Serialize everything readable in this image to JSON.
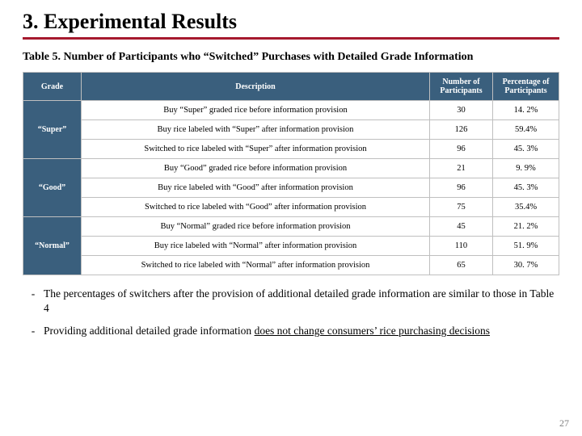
{
  "title": "3. Experimental Results",
  "caption": "Table 5. Number of Participants who “Switched” Purchases with Detailed Grade Information",
  "headers": {
    "grade": "Grade",
    "desc": "Description",
    "num": "Number of Participants",
    "pct": "Percentage of Participants"
  },
  "groups": [
    {
      "label": "“Super”",
      "rows": [
        {
          "desc": "Buy “Super” graded rice before information provision",
          "num": "30",
          "pct": "14. 2%"
        },
        {
          "desc": "Buy rice labeled with “Super” after information provision",
          "num": "126",
          "pct": "59.4%"
        },
        {
          "desc": "Switched to rice labeled with “Super” after information provision",
          "num": "96",
          "pct": "45. 3%"
        }
      ]
    },
    {
      "label": "“Good”",
      "rows": [
        {
          "desc": "Buy “Good” graded rice before information provision",
          "num": "21",
          "pct": "9. 9%"
        },
        {
          "desc": "Buy rice labeled with “Good” after information provision",
          "num": "96",
          "pct": "45. 3%"
        },
        {
          "desc": "Switched to rice labeled with “Good” after information provision",
          "num": "75",
          "pct": "35.4%"
        }
      ]
    },
    {
      "label": "“Normal”",
      "rows": [
        {
          "desc": "Buy “Normal” graded rice before information provision",
          "num": "45",
          "pct": "21. 2%"
        },
        {
          "desc": "Buy rice labeled with “Normal” after information provision",
          "num": "110",
          "pct": "51. 9%"
        },
        {
          "desc": "Switched to rice labeled with “Normal” after information provision",
          "num": "65",
          "pct": "30. 7%"
        }
      ]
    }
  ],
  "bullet1": "The percentages of switchers after the provision of additional detailed grade information are similar to those in Table 4",
  "bullet2_a": "Providing additional detailed grade information ",
  "bullet2_b": "does not change consumers’ rice purchasing decisions",
  "pagenum": "27",
  "colors": {
    "header_bg": "#3a5f7d",
    "border": "#bfbfbf",
    "rule": "#a6192e",
    "pagenum": "#808080"
  }
}
